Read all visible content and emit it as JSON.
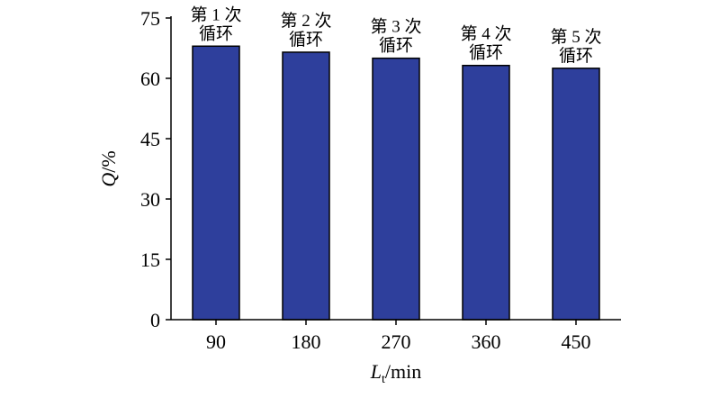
{
  "chart_data": {
    "type": "bar",
    "categories": [
      "90",
      "180",
      "270",
      "360",
      "450"
    ],
    "values": [
      68,
      66.5,
      65,
      63.2,
      62.5
    ],
    "bar_labels": [
      [
        "第 1 次",
        "循环"
      ],
      [
        "第 2 次",
        "循环"
      ],
      [
        "第 3 次",
        "循环"
      ],
      [
        "第 4 次",
        "循环"
      ],
      [
        "第 5 次",
        "循环"
      ]
    ],
    "title": "",
    "xlabel": {
      "main": "L",
      "subscript": "t",
      "suffix": "/min"
    },
    "ylabel": {
      "main": "Q",
      "suffix": "/%"
    },
    "ylim": [
      0,
      75
    ],
    "yticks": [
      "0",
      "15",
      "30",
      "45",
      "60",
      "75"
    ],
    "grid": false,
    "bar_color": "#2e3f9c"
  }
}
